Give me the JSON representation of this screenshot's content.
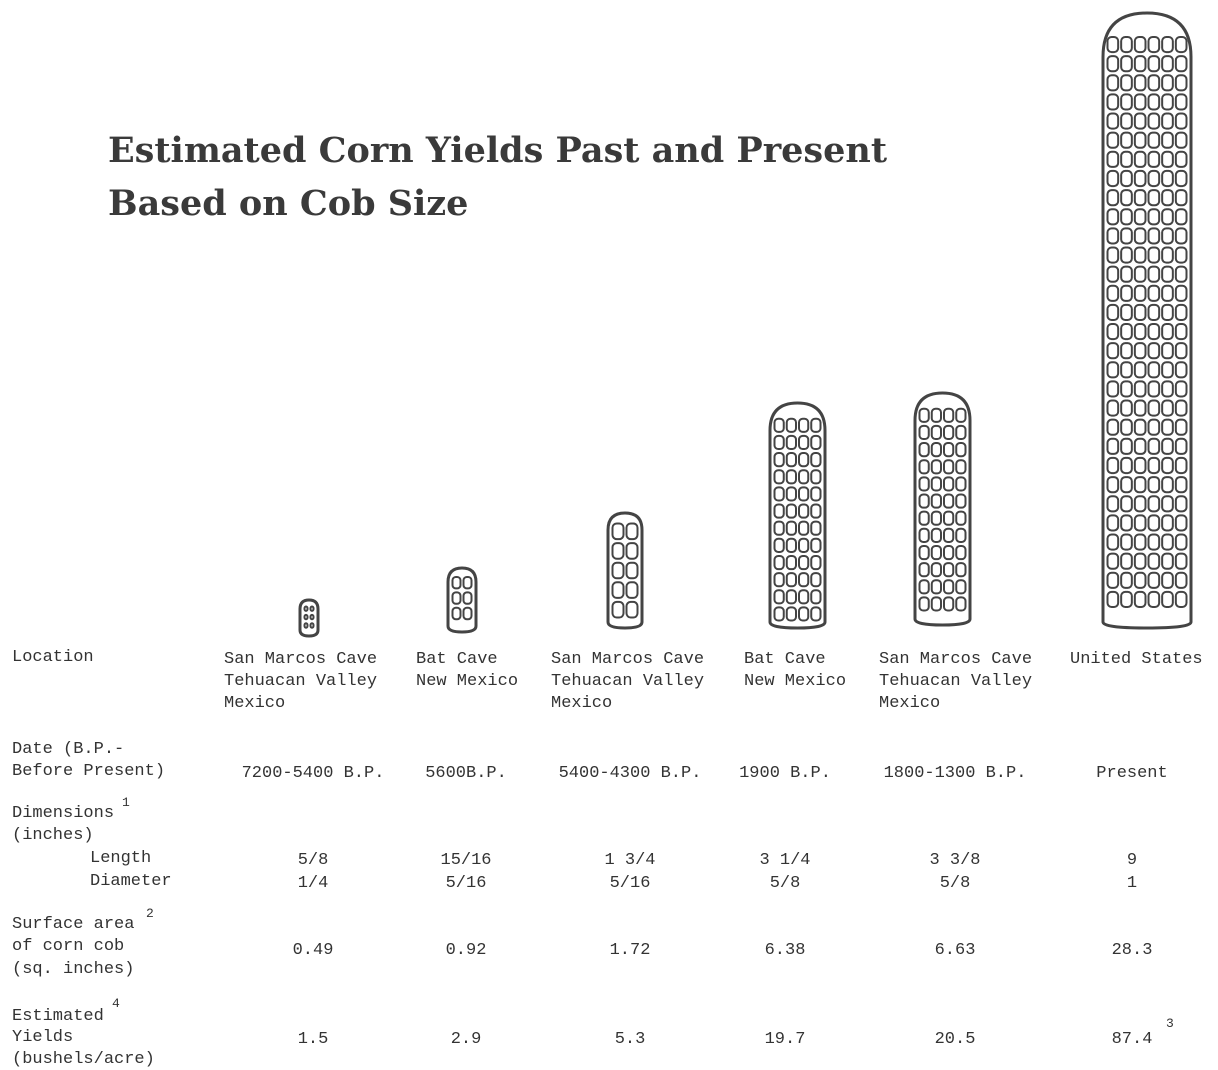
{
  "title": {
    "line1": "Estimated Corn Yields Past and Present",
    "line2": "Based on Cob Size"
  },
  "row_labels": {
    "location": "Location",
    "date": [
      "Date (B.P.-",
      "Before Present)"
    ],
    "dimensions": "Dimensions",
    "dimensions_note": "1",
    "dimensions_unit": "(inches)",
    "length": "Length",
    "diameter": "Diameter",
    "surface": [
      "Surface area",
      "of corn cob",
      "(sq. inches)"
    ],
    "surface_note": "2",
    "yield": [
      "Estimated",
      "Yields",
      "(bushels/acre)"
    ],
    "yield_note": "4"
  },
  "columns": [
    {
      "location": [
        "San Marcos Cave",
        "Tehuacan Valley",
        "Mexico"
      ],
      "date": "7200-5400 B.P.",
      "length": "5/8",
      "diameter": "1/4",
      "surface_area": 0.49,
      "yield": 1.5
    },
    {
      "location": [
        "Bat Cave",
        "New Mexico"
      ],
      "date": "5600B.P.",
      "length": "15/16",
      "diameter": "5/16",
      "surface_area": 0.92,
      "yield": 2.9
    },
    {
      "location": [
        "San Marcos Cave",
        "Tehuacan Valley",
        "Mexico"
      ],
      "date": "5400-4300 B.P.",
      "length": "1 3/4",
      "diameter": "5/16",
      "surface_area": 1.72,
      "yield": 5.3
    },
    {
      "location": [
        "Bat Cave",
        "New Mexico"
      ],
      "date": "1900 B.P.",
      "length": "3 1/4",
      "diameter": "5/8",
      "surface_area": 6.38,
      "yield": 19.7
    },
    {
      "location": [
        "San Marcos Cave",
        "Tehuacan Valley",
        "Mexico"
      ],
      "date": "1800-1300 B.P.",
      "length": "3 3/8",
      "diameter": "5/8",
      "surface_area": 6.63,
      "yield": 20.5
    },
    {
      "location": [
        "United States"
      ],
      "date": "Present",
      "length": "9",
      "diameter": "1",
      "surface_area": 28.3,
      "yield": 87.4,
      "yield_note": "3"
    }
  ]
}
